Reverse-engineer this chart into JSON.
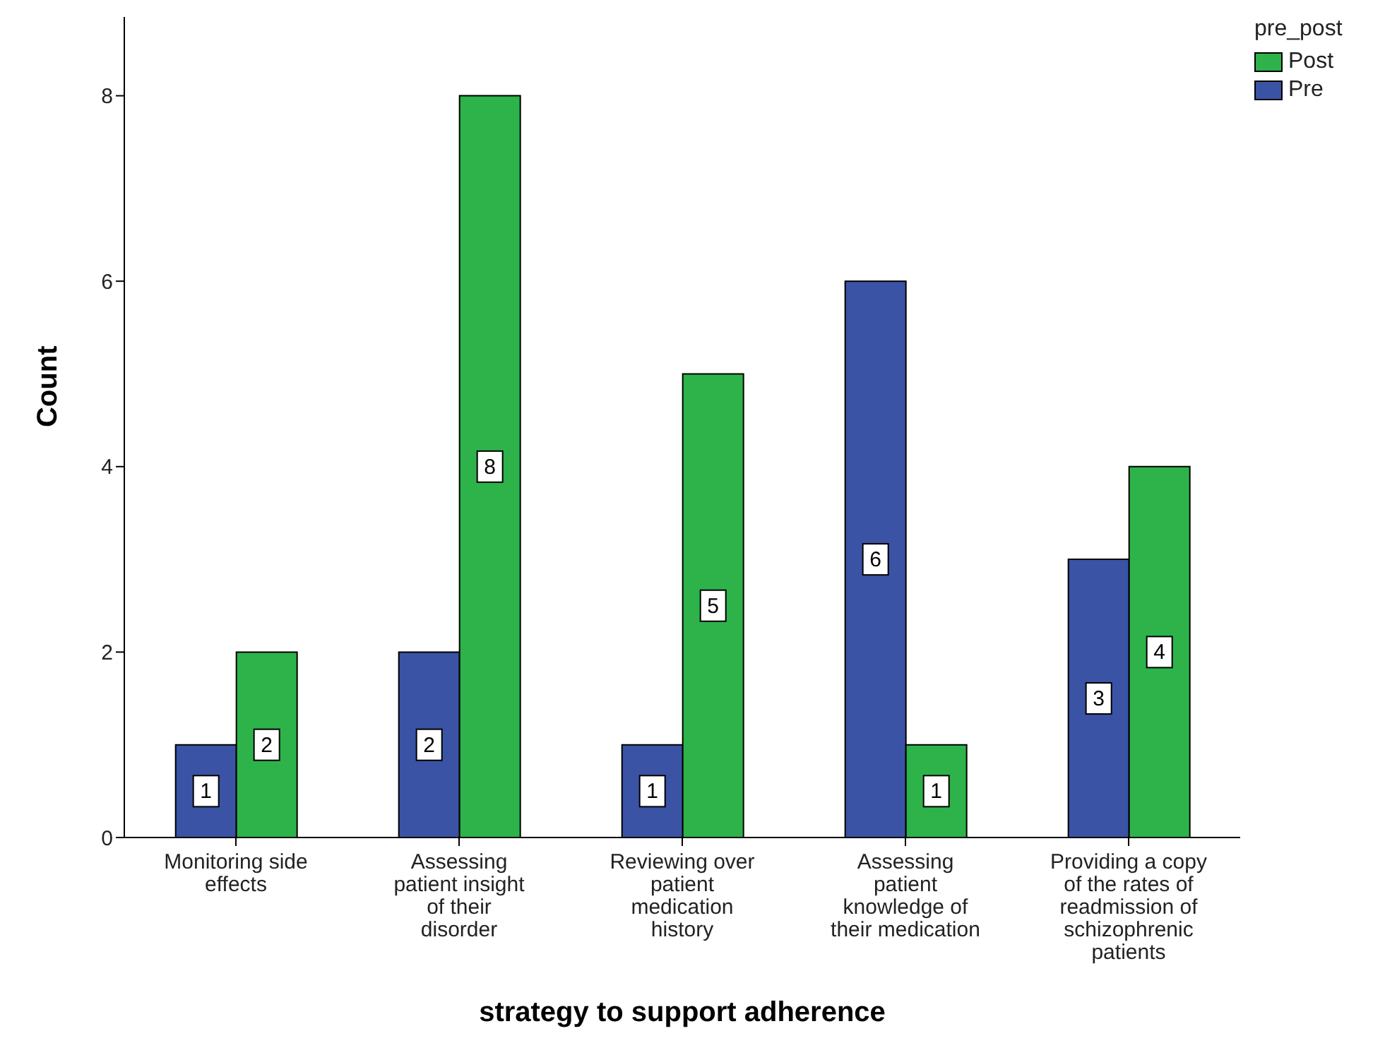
{
  "chart_data": {
    "type": "bar",
    "xlabel": "strategy to support adherence",
    "ylabel": "Count",
    "legend_title": "pre_post",
    "categories": [
      "Monitoring side effects",
      "Assessing patient insight of their disorder",
      "Reviewing over patient medication history",
      "Assessing patient knowledge of their medication",
      "Providing a copy of the rates of readmission of schizophrenic patients"
    ],
    "series": [
      {
        "name": "Pre",
        "color": "#3a53a4",
        "values": [
          1,
          2,
          1,
          6,
          3
        ]
      },
      {
        "name": "Post",
        "color": "#2db34a",
        "values": [
          2,
          8,
          5,
          1,
          4
        ]
      }
    ],
    "ylim": [
      0,
      8.85
    ],
    "yticks": [
      0,
      2,
      4,
      6,
      8
    ],
    "grid": false,
    "legend": "top right",
    "data_labels": true
  }
}
